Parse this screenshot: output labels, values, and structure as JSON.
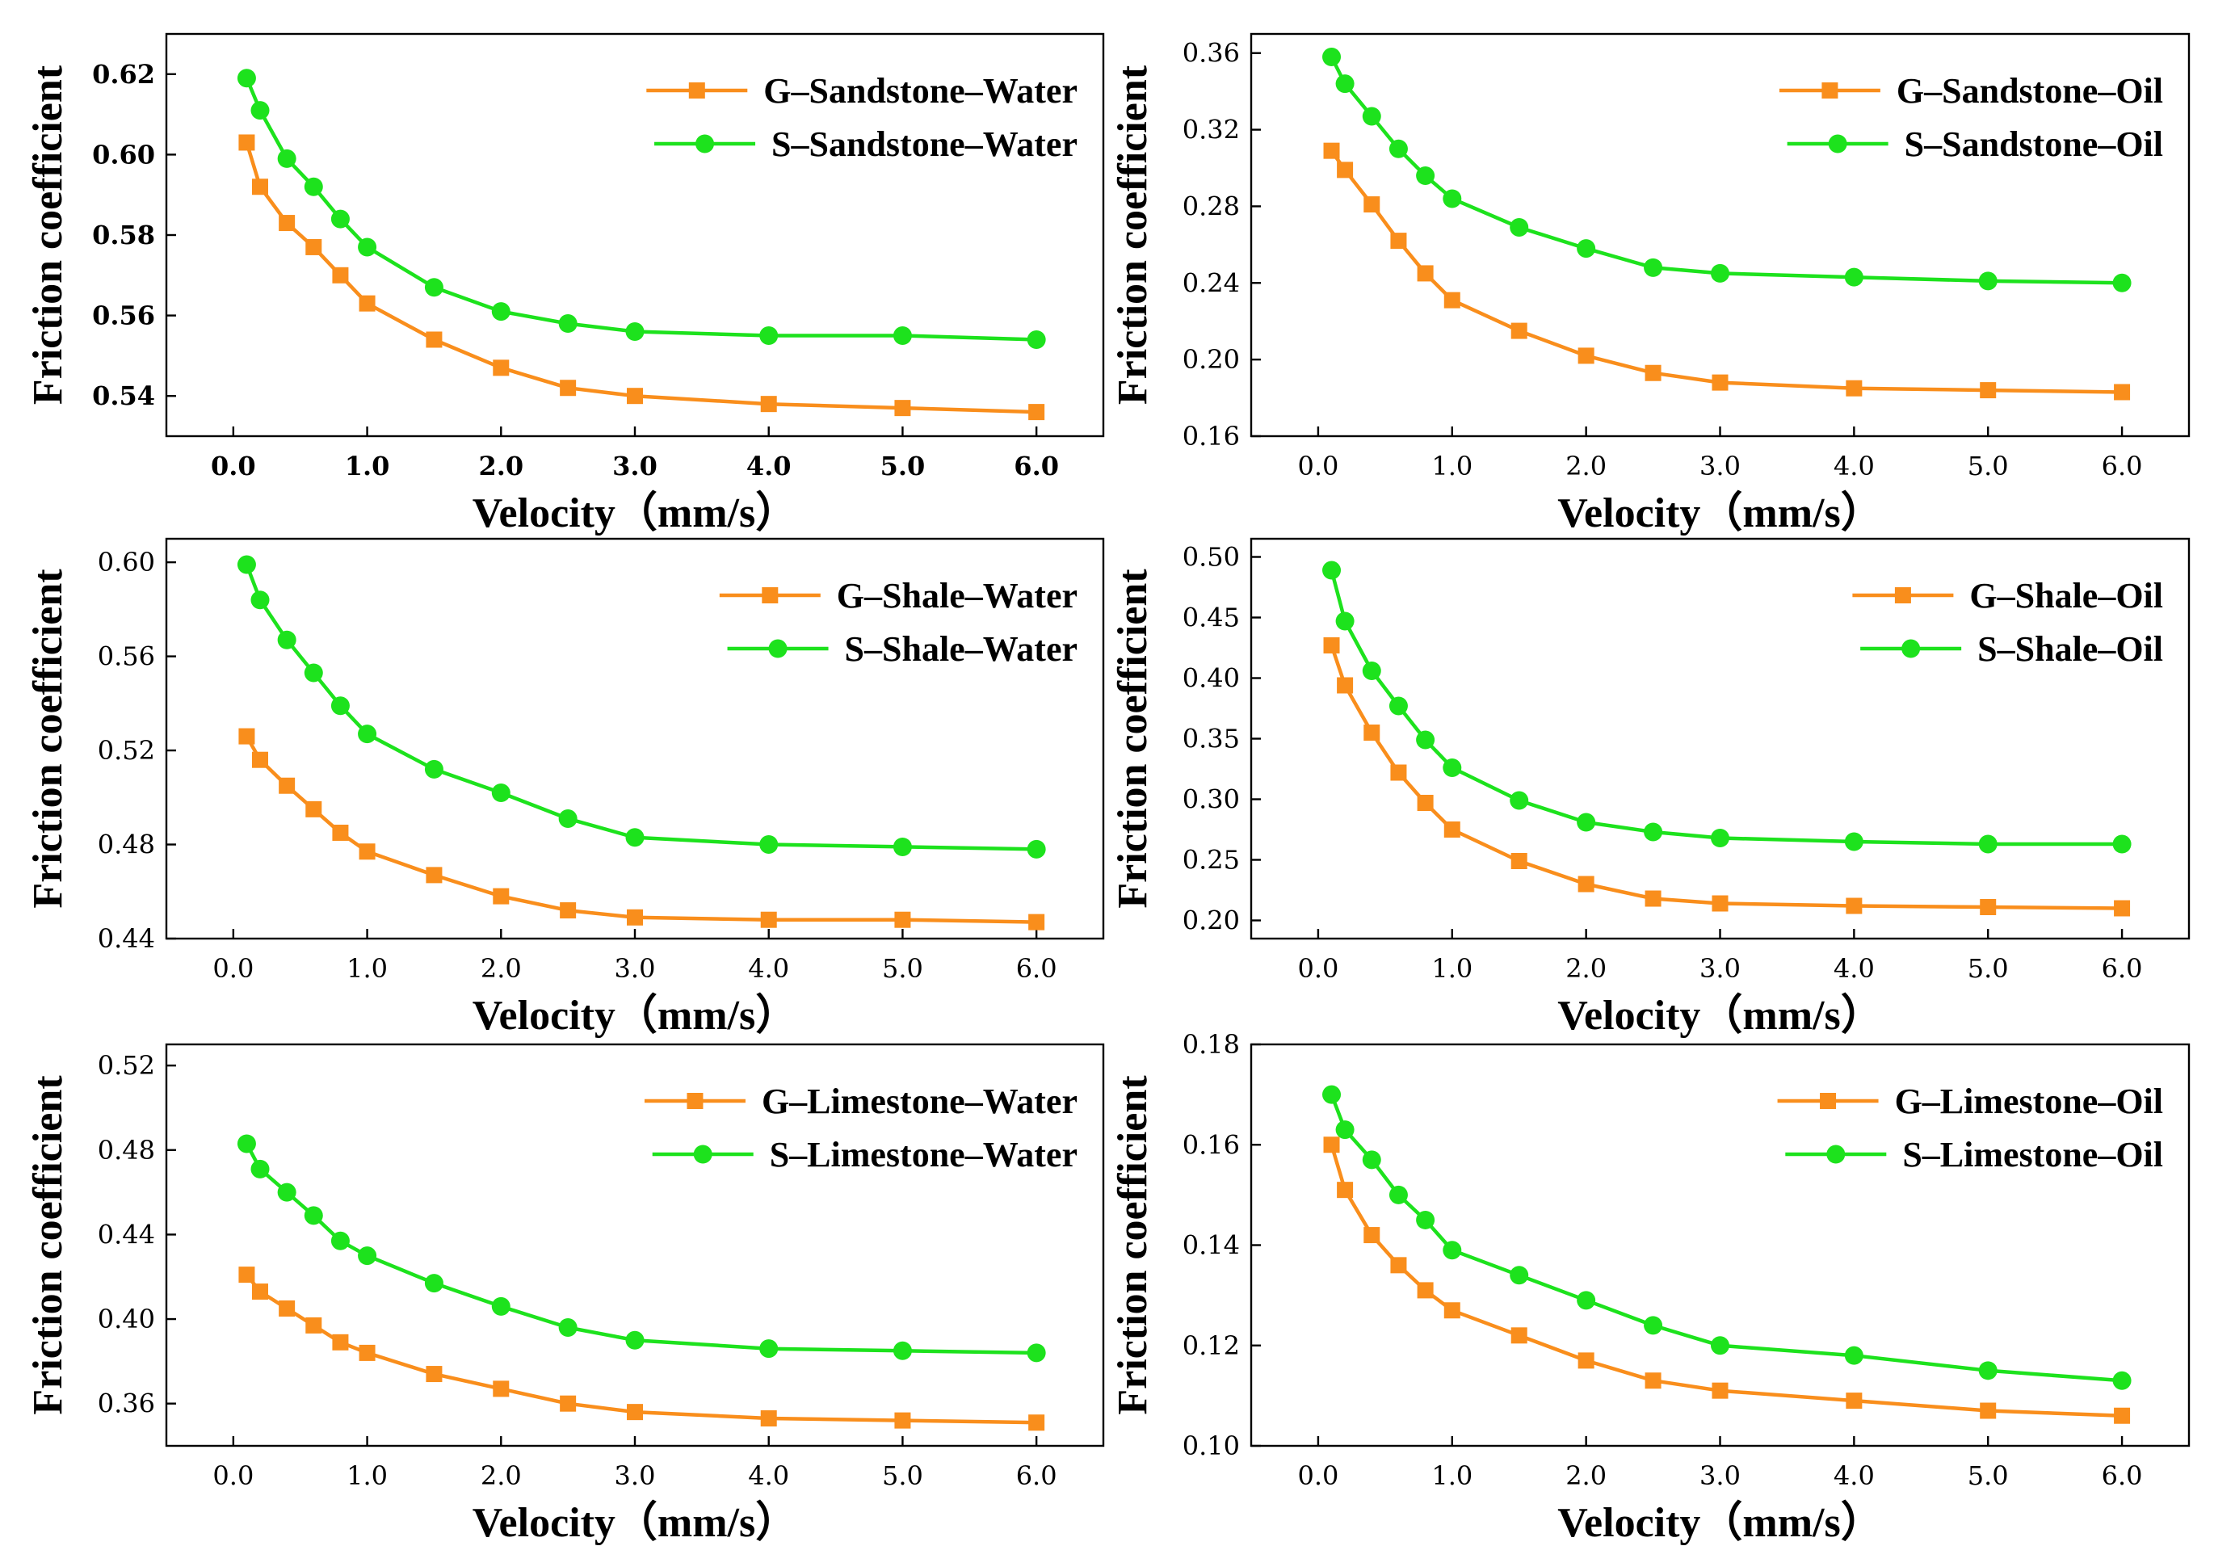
{
  "colors": {
    "G": "#F98E1C",
    "S": "#1DE21D",
    "axis": "#000000"
  },
  "chart_data": [
    {
      "type": "line",
      "title": "",
      "xlabel": "Velocity（mm/s）",
      "ylabel": "Friction coefficient",
      "xlim": [
        -0.5,
        6.5
      ],
      "ylim": [
        0.53,
        0.63
      ],
      "x_ticks": [
        0,
        1,
        2,
        3,
        4,
        5,
        6
      ],
      "x_tick_labels": [
        "0.0",
        "1.0",
        "2.0",
        "3.0",
        "4.0",
        "5.0",
        "6.0"
      ],
      "y_ticks": [
        0.54,
        0.56,
        0.58,
        0.6,
        0.62
      ],
      "y_tick_labels": [
        "0.54",
        "0.56",
        "0.58",
        "0.60",
        "0.62"
      ],
      "tick_style": "bold",
      "legend_position": "top-right",
      "x": [
        0.1,
        0.2,
        0.4,
        0.6,
        0.8,
        1.0,
        1.5,
        2.0,
        2.5,
        3.0,
        4.0,
        5.0,
        6.0
      ],
      "series": [
        {
          "name": "G–Sandstone–Water",
          "color": "#F98E1C",
          "marker": "square",
          "values": [
            0.603,
            0.592,
            0.583,
            0.577,
            0.57,
            0.563,
            0.554,
            0.547,
            0.542,
            0.54,
            0.538,
            0.537,
            0.536
          ]
        },
        {
          "name": "S–Sandstone–Water",
          "color": "#1DE21D",
          "marker": "circle",
          "values": [
            0.619,
            0.611,
            0.599,
            0.592,
            0.584,
            0.577,
            0.567,
            0.561,
            0.558,
            0.556,
            0.555,
            0.555,
            0.554
          ]
        }
      ]
    },
    {
      "type": "line",
      "title": "",
      "xlabel": "Velocity（mm/s）",
      "ylabel": "Friction coefficient",
      "xlim": [
        -0.5,
        6.5
      ],
      "ylim": [
        0.16,
        0.37
      ],
      "x_ticks": [
        0,
        1,
        2,
        3,
        4,
        5,
        6
      ],
      "x_tick_labels": [
        "0.0",
        "1.0",
        "2.0",
        "3.0",
        "4.0",
        "5.0",
        "6.0"
      ],
      "y_ticks": [
        0.16,
        0.2,
        0.24,
        0.28,
        0.32,
        0.36
      ],
      "y_tick_labels": [
        "0.16",
        "0.20",
        "0.24",
        "0.28",
        "0.32",
        "0.36"
      ],
      "tick_style": "normal",
      "legend_position": "top-right",
      "x": [
        0.1,
        0.2,
        0.4,
        0.6,
        0.8,
        1.0,
        1.5,
        2.0,
        2.5,
        3.0,
        4.0,
        5.0,
        6.0
      ],
      "series": [
        {
          "name": "G–Sandstone–Oil",
          "color": "#F98E1C",
          "marker": "square",
          "values": [
            0.309,
            0.299,
            0.281,
            0.262,
            0.245,
            0.231,
            0.215,
            0.202,
            0.193,
            0.188,
            0.185,
            0.184,
            0.183
          ]
        },
        {
          "name": "S–Sandstone–Oil",
          "color": "#1DE21D",
          "marker": "circle",
          "values": [
            0.358,
            0.344,
            0.327,
            0.31,
            0.296,
            0.284,
            0.269,
            0.258,
            0.248,
            0.245,
            0.243,
            0.241,
            0.24
          ]
        }
      ]
    },
    {
      "type": "line",
      "title": "",
      "xlabel": "Velocity（mm/s）",
      "ylabel": "Friction coefficient",
      "xlim": [
        -0.5,
        6.5
      ],
      "ylim": [
        0.44,
        0.61
      ],
      "x_ticks": [
        0,
        1,
        2,
        3,
        4,
        5,
        6
      ],
      "x_tick_labels": [
        "0.0",
        "1.0",
        "2.0",
        "3.0",
        "4.0",
        "5.0",
        "6.0"
      ],
      "y_ticks": [
        0.44,
        0.48,
        0.52,
        0.56,
        0.6
      ],
      "y_tick_labels": [
        "0.44",
        "0.48",
        "0.52",
        "0.56",
        "0.60"
      ],
      "tick_style": "normal",
      "legend_position": "top-right",
      "x": [
        0.1,
        0.2,
        0.4,
        0.6,
        0.8,
        1.0,
        1.5,
        2.0,
        2.5,
        3.0,
        4.0,
        5.0,
        6.0
      ],
      "series": [
        {
          "name": "G–Shale–Water",
          "color": "#F98E1C",
          "marker": "square",
          "values": [
            0.526,
            0.516,
            0.505,
            0.495,
            0.485,
            0.477,
            0.467,
            0.458,
            0.452,
            0.449,
            0.448,
            0.448,
            0.447
          ]
        },
        {
          "name": "S–Shale–Water",
          "color": "#1DE21D",
          "marker": "circle",
          "values": [
            0.599,
            0.584,
            0.567,
            0.553,
            0.539,
            0.527,
            0.512,
            0.502,
            0.491,
            0.483,
            0.48,
            0.479,
            0.478
          ]
        }
      ]
    },
    {
      "type": "line",
      "title": "",
      "xlabel": "Velocity（mm/s）",
      "ylabel": "Friction coefficient",
      "xlim": [
        -0.5,
        6.5
      ],
      "ylim": [
        0.185,
        0.515
      ],
      "x_ticks": [
        0,
        1,
        2,
        3,
        4,
        5,
        6
      ],
      "x_tick_labels": [
        "0.0",
        "1.0",
        "2.0",
        "3.0",
        "4.0",
        "5.0",
        "6.0"
      ],
      "y_ticks": [
        0.2,
        0.25,
        0.3,
        0.35,
        0.4,
        0.45,
        0.5
      ],
      "y_tick_labels": [
        "0.20",
        "0.25",
        "0.30",
        "0.35",
        "0.40",
        "0.45",
        "0.50"
      ],
      "tick_style": "normal",
      "legend_position": "top-right",
      "x": [
        0.1,
        0.2,
        0.4,
        0.6,
        0.8,
        1.0,
        1.5,
        2.0,
        2.5,
        3.0,
        4.0,
        5.0,
        6.0
      ],
      "series": [
        {
          "name": "G–Shale–Oil",
          "color": "#F98E1C",
          "marker": "square",
          "values": [
            0.427,
            0.394,
            0.355,
            0.322,
            0.297,
            0.275,
            0.249,
            0.23,
            0.218,
            0.214,
            0.212,
            0.211,
            0.21
          ]
        },
        {
          "name": "S–Shale–Oil",
          "color": "#1DE21D",
          "marker": "circle",
          "values": [
            0.489,
            0.447,
            0.406,
            0.377,
            0.349,
            0.326,
            0.299,
            0.281,
            0.273,
            0.268,
            0.265,
            0.263,
            0.263
          ]
        }
      ]
    },
    {
      "type": "line",
      "title": "",
      "xlabel": "Velocity（mm/s）",
      "ylabel": "Friction coefficient",
      "xlim": [
        -0.5,
        6.5
      ],
      "ylim": [
        0.34,
        0.53
      ],
      "x_ticks": [
        0,
        1,
        2,
        3,
        4,
        5,
        6
      ],
      "x_tick_labels": [
        "0.0",
        "1.0",
        "2.0",
        "3.0",
        "4.0",
        "5.0",
        "6.0"
      ],
      "y_ticks": [
        0.36,
        0.4,
        0.44,
        0.48,
        0.52
      ],
      "y_tick_labels": [
        "0.36",
        "0.40",
        "0.44",
        "0.48",
        "0.52"
      ],
      "tick_style": "normal",
      "legend_position": "top-right",
      "x": [
        0.1,
        0.2,
        0.4,
        0.6,
        0.8,
        1.0,
        1.5,
        2.0,
        2.5,
        3.0,
        4.0,
        5.0,
        6.0
      ],
      "series": [
        {
          "name": "G–Limestone–Water",
          "color": "#F98E1C",
          "marker": "square",
          "values": [
            0.421,
            0.413,
            0.405,
            0.397,
            0.389,
            0.384,
            0.374,
            0.367,
            0.36,
            0.356,
            0.353,
            0.352,
            0.351
          ]
        },
        {
          "name": "S–Limestone–Water",
          "color": "#1DE21D",
          "marker": "circle",
          "values": [
            0.483,
            0.471,
            0.46,
            0.449,
            0.437,
            0.43,
            0.417,
            0.406,
            0.396,
            0.39,
            0.386,
            0.385,
            0.384
          ]
        }
      ]
    },
    {
      "type": "line",
      "title": "",
      "xlabel": "Velocity（mm/s）",
      "ylabel": "Friction coefficient",
      "xlim": [
        -0.5,
        6.5
      ],
      "ylim": [
        0.1,
        0.18
      ],
      "x_ticks": [
        0,
        1,
        2,
        3,
        4,
        5,
        6
      ],
      "x_tick_labels": [
        "0.0",
        "1.0",
        "2.0",
        "3.0",
        "4.0",
        "5.0",
        "6.0"
      ],
      "y_ticks": [
        0.1,
        0.12,
        0.14,
        0.16,
        0.18
      ],
      "y_tick_labels": [
        "0.10",
        "0.12",
        "0.14",
        "0.16",
        "0.18"
      ],
      "tick_style": "normal",
      "legend_position": "top-right",
      "x": [
        0.1,
        0.2,
        0.4,
        0.6,
        0.8,
        1.0,
        1.5,
        2.0,
        2.5,
        3.0,
        4.0,
        5.0,
        6.0
      ],
      "series": [
        {
          "name": "G–Limestone–Oil",
          "color": "#F98E1C",
          "marker": "square",
          "values": [
            0.16,
            0.151,
            0.142,
            0.136,
            0.131,
            0.127,
            0.122,
            0.117,
            0.113,
            0.111,
            0.109,
            0.107,
            0.106
          ]
        },
        {
          "name": "S–Limestone–Oil",
          "color": "#1DE21D",
          "marker": "circle",
          "values": [
            0.17,
            0.163,
            0.157,
            0.15,
            0.145,
            0.139,
            0.134,
            0.129,
            0.124,
            0.12,
            0.118,
            0.115,
            0.113
          ]
        }
      ]
    }
  ]
}
